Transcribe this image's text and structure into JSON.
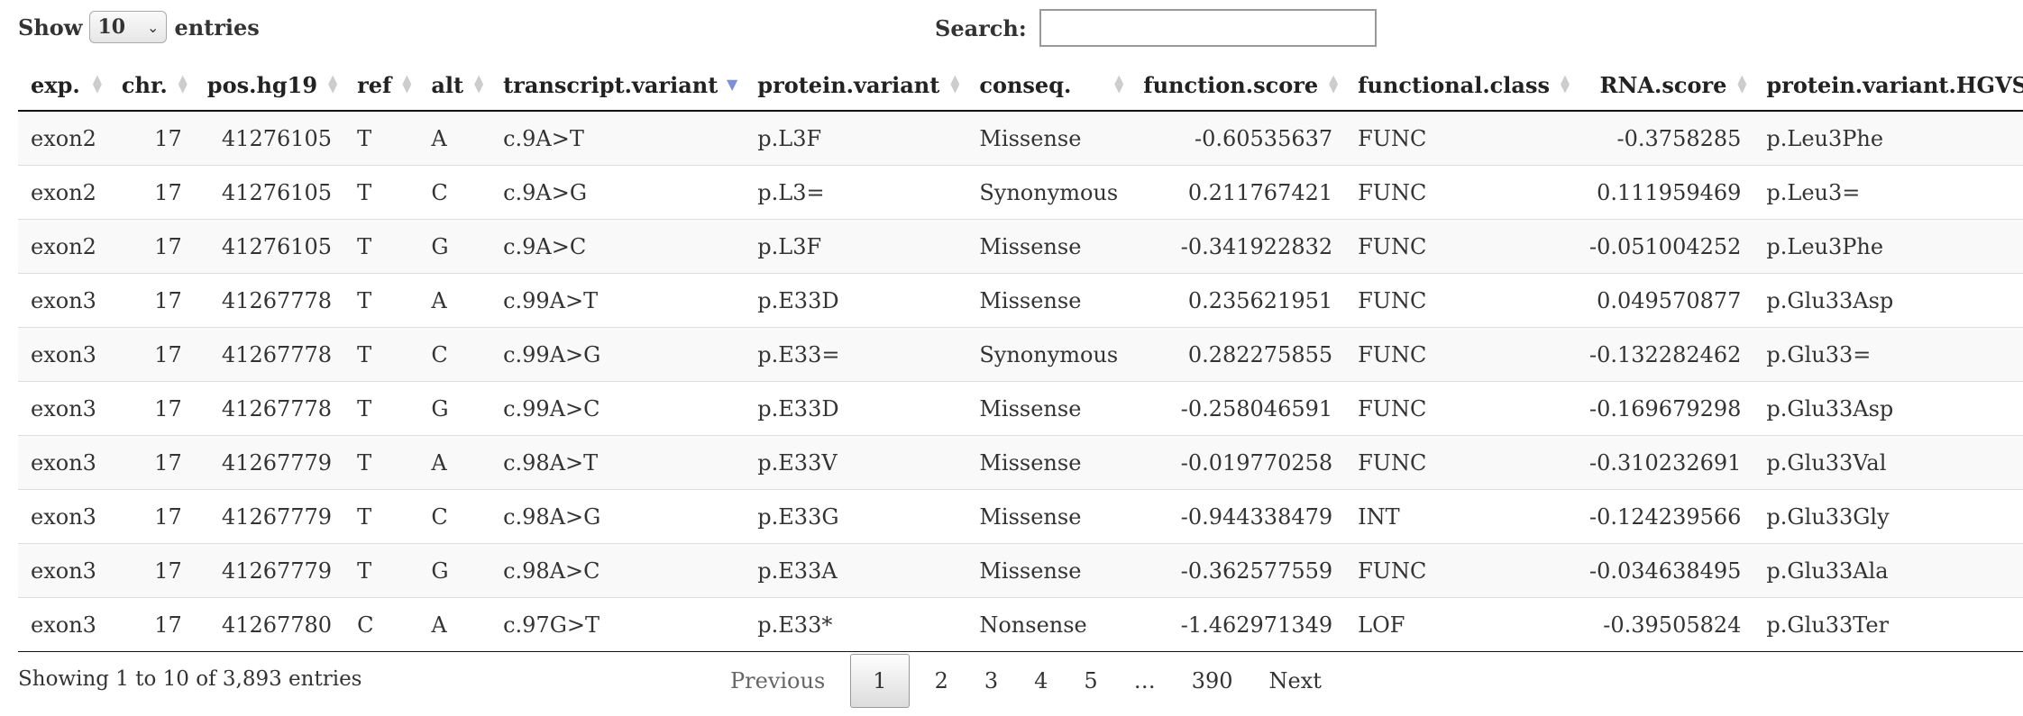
{
  "length_control": {
    "prefix": "Show",
    "value": "10",
    "suffix": "entries"
  },
  "search": {
    "label": "Search:",
    "value": ""
  },
  "columns": [
    {
      "label": "exp.",
      "align": "l",
      "sort": "both"
    },
    {
      "label": "chr.",
      "align": "r",
      "sort": "both"
    },
    {
      "label": "pos.hg19",
      "align": "r",
      "sort": "both"
    },
    {
      "label": "ref",
      "align": "l",
      "sort": "both"
    },
    {
      "label": "alt",
      "align": "l",
      "sort": "both"
    },
    {
      "label": "transcript.variant",
      "align": "l",
      "sort": "desc"
    },
    {
      "label": "protein.variant",
      "align": "l",
      "sort": "both"
    },
    {
      "label": "conseq.",
      "align": "l",
      "sort": "both"
    },
    {
      "label": "function.score",
      "align": "r",
      "sort": "both"
    },
    {
      "label": "functional.class",
      "align": "l",
      "sort": "both"
    },
    {
      "label": "RNA.score",
      "align": "r",
      "sort": "both"
    },
    {
      "label": "protein.variant.HGVS",
      "align": "l",
      "sort": "both"
    }
  ],
  "rows": [
    [
      "exon2",
      "17",
      "41276105",
      "T",
      "A",
      "c.9A>T",
      "p.L3F",
      "Missense",
      "-0.60535637",
      "FUNC",
      "-0.3758285",
      "p.Leu3Phe"
    ],
    [
      "exon2",
      "17",
      "41276105",
      "T",
      "C",
      "c.9A>G",
      "p.L3=",
      "Synonymous",
      "0.211767421",
      "FUNC",
      "0.111959469",
      "p.Leu3="
    ],
    [
      "exon2",
      "17",
      "41276105",
      "T",
      "G",
      "c.9A>C",
      "p.L3F",
      "Missense",
      "-0.341922832",
      "FUNC",
      "-0.051004252",
      "p.Leu3Phe"
    ],
    [
      "exon3",
      "17",
      "41267778",
      "T",
      "A",
      "c.99A>T",
      "p.E33D",
      "Missense",
      "0.235621951",
      "FUNC",
      "0.049570877",
      "p.Glu33Asp"
    ],
    [
      "exon3",
      "17",
      "41267778",
      "T",
      "C",
      "c.99A>G",
      "p.E33=",
      "Synonymous",
      "0.282275855",
      "FUNC",
      "-0.132282462",
      "p.Glu33="
    ],
    [
      "exon3",
      "17",
      "41267778",
      "T",
      "G",
      "c.99A>C",
      "p.E33D",
      "Missense",
      "-0.258046591",
      "FUNC",
      "-0.169679298",
      "p.Glu33Asp"
    ],
    [
      "exon3",
      "17",
      "41267779",
      "T",
      "A",
      "c.98A>T",
      "p.E33V",
      "Missense",
      "-0.019770258",
      "FUNC",
      "-0.310232691",
      "p.Glu33Val"
    ],
    [
      "exon3",
      "17",
      "41267779",
      "T",
      "C",
      "c.98A>G",
      "p.E33G",
      "Missense",
      "-0.944338479",
      "INT",
      "-0.124239566",
      "p.Glu33Gly"
    ],
    [
      "exon3",
      "17",
      "41267779",
      "T",
      "G",
      "c.98A>C",
      "p.E33A",
      "Missense",
      "-0.362577559",
      "FUNC",
      "-0.034638495",
      "p.Glu33Ala"
    ],
    [
      "exon3",
      "17",
      "41267780",
      "C",
      "A",
      "c.97G>T",
      "p.E33*",
      "Nonsense",
      "-1.462971349",
      "LOF",
      "-0.39505824",
      "p.Glu33Ter"
    ]
  ],
  "info": "Showing 1 to 10 of 3,893 entries",
  "pagination": {
    "previous": "Previous",
    "pages": [
      "1",
      "2",
      "3",
      "4",
      "5",
      "…",
      "390"
    ],
    "current": "1",
    "next": "Next"
  }
}
